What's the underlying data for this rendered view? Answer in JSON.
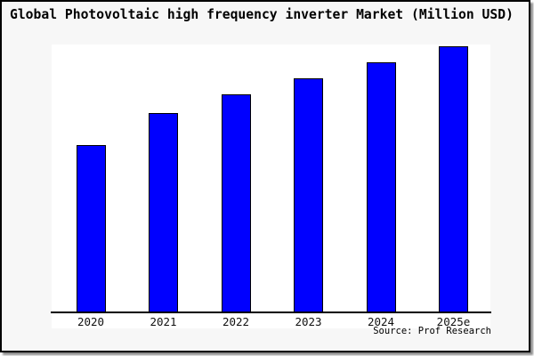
{
  "title": "Global Photovoltaic high frequency inverter Market (Million USD)",
  "source": "Source: Prof Research",
  "colors": {
    "bar_fill": "#0000ff",
    "bar_border": "#000000",
    "background": "#f7f7f7",
    "plot_background": "#ffffff",
    "axis": "#000000"
  },
  "chart_data": {
    "type": "bar",
    "title": "Global Photovoltaic high frequency inverter Market (Million USD)",
    "categories": [
      "2020",
      "2021",
      "2022",
      "2023",
      "2024",
      "2025e"
    ],
    "values": [
      63,
      75,
      82,
      88,
      94,
      100
    ],
    "value_note": "y-axis has no tick labels or gridlines; values are relative bar heights estimated from pixels with 2025e normalized to 100",
    "xlabel": "",
    "ylabel": "",
    "ylim": [
      0,
      100
    ],
    "grid": false,
    "legend_position": "none",
    "annotations": [
      "Source: Prof Research"
    ]
  }
}
